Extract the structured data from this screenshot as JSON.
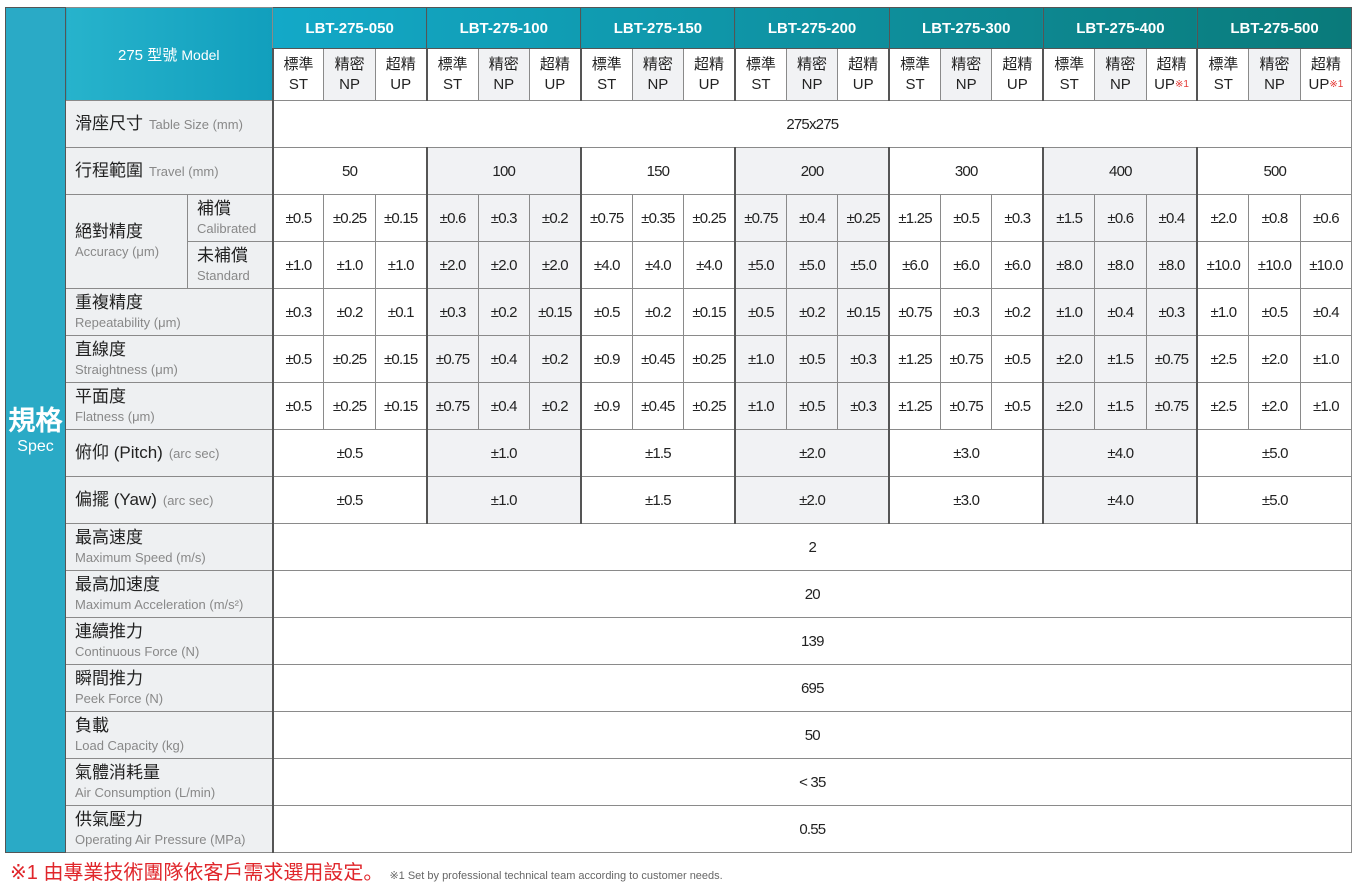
{
  "spec_label": {
    "zh": "規格",
    "en": "Spec"
  },
  "corner": {
    "zh": "275 型號",
    "en": "Model"
  },
  "colors": {
    "header_start": "#13a9c8",
    "header_end": "#0a7a7a",
    "spec_col": "#2aaac6",
    "footnote": "#e0262b"
  },
  "models": [
    "LBT-275-050",
    "LBT-275-100",
    "LBT-275-150",
    "LBT-275-200",
    "LBT-275-300",
    "LBT-275-400",
    "LBT-275-500"
  ],
  "grades": [
    [
      {
        "zh": "標準",
        "en": "ST",
        "note": ""
      },
      {
        "zh": "精密",
        "en": "NP",
        "note": ""
      },
      {
        "zh": "超精",
        "en": "UP",
        "note": ""
      }
    ],
    [
      {
        "zh": "標準",
        "en": "ST",
        "note": ""
      },
      {
        "zh": "精密",
        "en": "NP",
        "note": ""
      },
      {
        "zh": "超精",
        "en": "UP",
        "note": ""
      }
    ],
    [
      {
        "zh": "標準",
        "en": "ST",
        "note": ""
      },
      {
        "zh": "精密",
        "en": "NP",
        "note": ""
      },
      {
        "zh": "超精",
        "en": "UP",
        "note": ""
      }
    ],
    [
      {
        "zh": "標準",
        "en": "ST",
        "note": ""
      },
      {
        "zh": "精密",
        "en": "NP",
        "note": ""
      },
      {
        "zh": "超精",
        "en": "UP",
        "note": ""
      }
    ],
    [
      {
        "zh": "標準",
        "en": "ST",
        "note": ""
      },
      {
        "zh": "精密",
        "en": "NP",
        "note": ""
      },
      {
        "zh": "超精",
        "en": "UP",
        "note": ""
      }
    ],
    [
      {
        "zh": "標準",
        "en": "ST",
        "note": ""
      },
      {
        "zh": "精密",
        "en": "NP",
        "note": ""
      },
      {
        "zh": "超精",
        "en": "UP",
        "note": "※1"
      }
    ],
    [
      {
        "zh": "標準",
        "en": "ST",
        "note": ""
      },
      {
        "zh": "精密",
        "en": "NP",
        "note": ""
      },
      {
        "zh": "超精",
        "en": "UP",
        "note": "※1"
      }
    ]
  ],
  "rows": {
    "table_size": {
      "zh": "滑座尺寸",
      "en": "Table Size (mm)",
      "value": "275x275"
    },
    "travel": {
      "zh": "行程範圍",
      "en": "Travel  (mm)",
      "values": [
        "50",
        "100",
        "150",
        "200",
        "300",
        "400",
        "500"
      ]
    },
    "accuracy": {
      "zh": "絕對精度",
      "en": "Accuracy (μm)",
      "calibrated": {
        "zh": "補償",
        "en": "Calibrated",
        "values": [
          "±0.5",
          "±0.25",
          "±0.15",
          "±0.6",
          "±0.3",
          "±0.2",
          "±0.75",
          "±0.35",
          "±0.25",
          "±0.75",
          "±0.4",
          "±0.25",
          "±1.25",
          "±0.5",
          "±0.3",
          "±1.5",
          "±0.6",
          "±0.4",
          "±2.0",
          "±0.8",
          "±0.6"
        ]
      },
      "standard": {
        "zh": "未補償",
        "en": "Standard",
        "values": [
          "±1.0",
          "±1.0",
          "±1.0",
          "±2.0",
          "±2.0",
          "±2.0",
          "±4.0",
          "±4.0",
          "±4.0",
          "±5.0",
          "±5.0",
          "±5.0",
          "±6.0",
          "±6.0",
          "±6.0",
          "±8.0",
          "±8.0",
          "±8.0",
          "±10.0",
          "±10.0",
          "±10.0"
        ]
      }
    },
    "repeatability": {
      "zh": "重複精度",
      "en": "Repeatability (μm)",
      "values": [
        "±0.3",
        "±0.2",
        "±0.1",
        "±0.3",
        "±0.2",
        "±0.15",
        "±0.5",
        "±0.2",
        "±0.15",
        "±0.5",
        "±0.2",
        "±0.15",
        "±0.75",
        "±0.3",
        "±0.2",
        "±1.0",
        "±0.4",
        "±0.3",
        "±1.0",
        "±0.5",
        "±0.4"
      ]
    },
    "straightness": {
      "zh": "直線度",
      "en": "Straightness (μm)",
      "values": [
        "±0.5",
        "±0.25",
        "±0.15",
        "±0.75",
        "±0.4",
        "±0.2",
        "±0.9",
        "±0.45",
        "±0.25",
        "±1.0",
        "±0.5",
        "±0.3",
        "±1.25",
        "±0.75",
        "±0.5",
        "±2.0",
        "±1.5",
        "±0.75",
        "±2.5",
        "±2.0",
        "±1.0"
      ]
    },
    "flatness": {
      "zh": "平面度",
      "en": "Flatness (μm)",
      "values": [
        "±0.5",
        "±0.25",
        "±0.15",
        "±0.75",
        "±0.4",
        "±0.2",
        "±0.9",
        "±0.45",
        "±0.25",
        "±1.0",
        "±0.5",
        "±0.3",
        "±1.25",
        "±0.75",
        "±0.5",
        "±2.0",
        "±1.5",
        "±0.75",
        "±2.5",
        "±2.0",
        "±1.0"
      ]
    },
    "pitch": {
      "zh": "俯仰 (Pitch)",
      "en": "(arc sec)",
      "values": [
        "±0.5",
        "±1.0",
        "±1.5",
        "±2.0",
        "±3.0",
        "±4.0",
        "±5.0"
      ]
    },
    "yaw": {
      "zh": "偏擺 (Yaw)",
      "en": "(arc sec)",
      "values": [
        "±0.5",
        "±1.0",
        "±1.5",
        "±2.0",
        "±3.0",
        "±4.0",
        "±5.0"
      ]
    },
    "common": [
      {
        "key": "max-speed",
        "zh": "最高速度",
        "en": "Maximum Speed (m/s)",
        "value": "2"
      },
      {
        "key": "max-acceleration",
        "zh": "最高加速度",
        "en": "Maximum Acceleration (m/s²)",
        "value": "20"
      },
      {
        "key": "continuous-force",
        "zh": "連續推力",
        "en": "Continuous Force (N)",
        "value": "139"
      },
      {
        "key": "peek-force",
        "zh": "瞬間推力",
        "en": "Peek Force (N)",
        "value": "695"
      },
      {
        "key": "load-capacity",
        "zh": "負載",
        "en": "Load Capacity (kg)",
        "value": "50"
      },
      {
        "key": "air-consumption",
        "zh": "氣體消耗量",
        "en": "Air Consumption (L/min)",
        "value": "< 35"
      },
      {
        "key": "air-pressure",
        "zh": "供氣壓力",
        "en": "Operating Air Pressure (MPa)",
        "value": "0.55"
      }
    ]
  },
  "footnote": {
    "zh": "※1 由專業技術團隊依客戶需求選用設定。",
    "en": "※1 Set by professional technical team according to customer needs."
  }
}
